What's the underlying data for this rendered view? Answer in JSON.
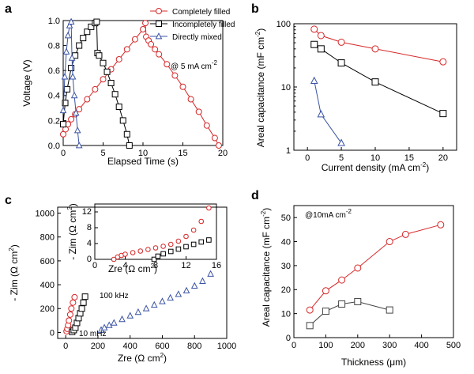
{
  "chart_data": [
    {
      "panel": "a",
      "type": "line",
      "xlabel": "Elapsed Time (s)",
      "ylabel": "Voltage (V)",
      "xlim": [
        0,
        20
      ],
      "ylim": [
        0,
        1.0
      ],
      "xticks": [
        0,
        5,
        10,
        15,
        20
      ],
      "yticks": [
        0.0,
        0.2,
        0.4,
        0.6,
        0.8,
        1.0
      ],
      "xtick_labels": [
        "0",
        "5",
        "10",
        "15",
        "20"
      ],
      "ytick_labels": [
        "0.0",
        "0.2",
        "0.4",
        "0.6",
        "0.8",
        "1.0"
      ],
      "annotation": "@ 5 mA cm",
      "annotation_sup": "-2",
      "legend_position": "top-right",
      "series": [
        {
          "name": "Completely filled",
          "color": "#d62728",
          "marker": "circle",
          "x": [
            0.0,
            0.3,
            0.6,
            1.0,
            1.5,
            2.0,
            3.0,
            4.0,
            5.0,
            6.0,
            7.0,
            8.0,
            9.0,
            10.0,
            10.3,
            10.4,
            10.7,
            11.0,
            11.5,
            12.0,
            13.0,
            14.0,
            15.0,
            16.0,
            17.0,
            18.0,
            19.0,
            19.5
          ],
          "y": [
            0.09,
            0.13,
            0.17,
            0.21,
            0.25,
            0.29,
            0.37,
            0.45,
            0.53,
            0.61,
            0.69,
            0.77,
            0.85,
            0.93,
            0.98,
            0.87,
            0.84,
            0.81,
            0.77,
            0.73,
            0.65,
            0.56,
            0.47,
            0.37,
            0.27,
            0.16,
            0.06,
            0.0
          ]
        },
        {
          "name": "Incompletely filled",
          "color": "#000000",
          "marker": "square",
          "x": [
            0.0,
            0.25,
            0.5,
            1.0,
            1.5,
            2.0,
            2.5,
            3.0,
            3.5,
            4.0,
            4.2,
            4.3,
            4.5,
            5.0,
            5.5,
            6.0,
            6.5,
            7.0,
            7.5,
            8.0,
            8.3
          ],
          "y": [
            0.17,
            0.34,
            0.45,
            0.62,
            0.72,
            0.8,
            0.86,
            0.91,
            0.95,
            0.98,
            0.99,
            0.74,
            0.72,
            0.66,
            0.59,
            0.5,
            0.41,
            0.31,
            0.2,
            0.09,
            0.0
          ]
        },
        {
          "name": "Directly mixed",
          "color": "#3a53a4",
          "marker": "triangle",
          "x": [
            0.0,
            0.2,
            0.4,
            0.6,
            0.8,
            1.0,
            1.1,
            1.2,
            1.4,
            1.6,
            1.8,
            2.0
          ],
          "y": [
            0.28,
            0.55,
            0.75,
            0.88,
            0.96,
            0.99,
            0.7,
            0.55,
            0.4,
            0.26,
            0.12,
            0.0
          ]
        }
      ]
    },
    {
      "panel": "b",
      "type": "line",
      "xlabel": "Current density (mA cm",
      "xlabel_sup": "-2",
      "xlabel_end": ")",
      "ylabel": "Areal capacitance (mF cm",
      "ylabel_sup": "-2",
      "ylabel_end": ")",
      "yscale": "log",
      "xlim": [
        -2,
        22
      ],
      "ylim": [
        1,
        100
      ],
      "xticks": [
        0,
        5,
        10,
        15,
        20
      ],
      "xtick_labels": [
        "0",
        "5",
        "10",
        "15",
        "20"
      ],
      "yticks": [
        1,
        10,
        100
      ],
      "ytick_labels": [
        "1",
        "10",
        "100"
      ],
      "series": [
        {
          "name": "Completely filled",
          "color": "#d62728",
          "marker": "circle",
          "x": [
            1,
            2,
            5,
            10,
            20
          ],
          "y": [
            82,
            65,
            51,
            40,
            25
          ]
        },
        {
          "name": "Incompletely filled",
          "color": "#000000",
          "marker": "square",
          "x": [
            1,
            2,
            5,
            10,
            20
          ],
          "y": [
            47,
            40,
            24,
            12,
            3.8
          ]
        },
        {
          "name": "Directly mixed",
          "color": "#3a53a4",
          "marker": "triangle",
          "x": [
            1,
            2,
            5
          ],
          "y": [
            12.5,
            3.7,
            1.3
          ]
        }
      ]
    },
    {
      "panel": "c",
      "type": "scatter",
      "xlabel": "Zre (Ω cm",
      "xlabel_sup": "2",
      "xlabel_end": ")",
      "ylabel": "- Zim (Ω cm",
      "ylabel_sup": "2",
      "ylabel_end": ")",
      "xlim": [
        -50,
        1000
      ],
      "ylim": [
        -50,
        1050
      ],
      "xticks": [
        0,
        200,
        400,
        600,
        800,
        1000
      ],
      "xtick_labels": [
        "0",
        "200",
        "400",
        "600",
        "800",
        "1000"
      ],
      "yticks": [
        0,
        200,
        400,
        600,
        800,
        1000
      ],
      "ytick_labels": [
        "0",
        "200",
        "400",
        "600",
        "800",
        "1000"
      ],
      "annotations": [
        "100 kHz",
        "10 mHz"
      ],
      "series": [
        {
          "name": "Completely filled",
          "color": "#d62728",
          "marker": "circle",
          "x": [
            5,
            10,
            15,
            20,
            28,
            35,
            45,
            55
          ],
          "y": [
            10,
            30,
            60,
            100,
            150,
            200,
            250,
            295
          ]
        },
        {
          "name": "Incompletely filled",
          "color": "#000000",
          "marker": "square",
          "x": [
            40,
            50,
            60,
            70,
            80,
            90,
            100,
            110,
            120
          ],
          "y": [
            5,
            20,
            40,
            80,
            120,
            160,
            200,
            250,
            300
          ]
        },
        {
          "name": "Directly mixed",
          "color": "#3a53a4",
          "marker": "triangle",
          "x": [
            220,
            240,
            270,
            300,
            350,
            400,
            450,
            500,
            550,
            600,
            650,
            700,
            750,
            800,
            850,
            900
          ],
          "y": [
            20,
            40,
            60,
            80,
            110,
            140,
            170,
            200,
            230,
            260,
            290,
            320,
            350,
            390,
            430,
            490
          ]
        }
      ],
      "inset": {
        "xlabel": "Zre (Ω cm",
        "xlabel_sup": "2",
        "xlabel_end": ")",
        "ylabel": "- Zim (Ω cm",
        "ylabel_sup": "2",
        "ylabel_end": ")",
        "xlim": [
          0,
          16
        ],
        "ylim": [
          0,
          14
        ],
        "xticks": [
          0,
          4,
          8,
          12,
          16
        ],
        "xtick_labels": [
          "0",
          "4",
          "8",
          "12",
          "16"
        ],
        "yticks": [
          0,
          4,
          8,
          12
        ],
        "ytick_labels": [
          "0",
          "4",
          "8",
          "12"
        ],
        "series": [
          {
            "name": "Completely filled",
            "color": "#d62728",
            "marker": "circle",
            "x": [
              2.5,
              3.0,
              3.5,
              4.0,
              5.0,
              6.0,
              7.0,
              8.0,
              9.0,
              10.0,
              11.0,
              12.0,
              13.0,
              14.0,
              15.0
            ],
            "y": [
              0.0,
              0.6,
              1.0,
              1.3,
              1.7,
              2.1,
              2.5,
              2.9,
              3.3,
              3.8,
              4.6,
              5.8,
              7.4,
              9.6,
              13.0
            ]
          },
          {
            "name": "Incompletely filled",
            "color": "#000000",
            "marker": "square",
            "x": [
              7.8,
              8.3,
              9.0,
              10.0,
              11.0,
              12.0,
              13.0,
              14.0,
              15.0
            ],
            "y": [
              0.0,
              0.8,
              1.4,
              2.0,
              2.6,
              3.2,
              3.8,
              4.4,
              4.9
            ]
          }
        ]
      }
    },
    {
      "panel": "d",
      "type": "line",
      "xlabel": "Thickness (μm)",
      "ylabel": "Areal capacitance (mF cm",
      "ylabel_sup": "-2",
      "ylabel_end": ")",
      "xlim": [
        0,
        500
      ],
      "ylim": [
        0,
        55
      ],
      "xticks": [
        0,
        100,
        200,
        300,
        400,
        500
      ],
      "xtick_labels": [
        "0",
        "100",
        "200",
        "300",
        "400",
        "500"
      ],
      "yticks": [
        0,
        10,
        20,
        30,
        40,
        50
      ],
      "ytick_labels": [
        "0",
        "10",
        "20",
        "30",
        "40",
        "50"
      ],
      "annotation": "@10mA cm",
      "annotation_sup": "-2",
      "series": [
        {
          "name": "Completely filled",
          "color": "#d62728",
          "marker": "circle",
          "x": [
            50,
            100,
            150,
            200,
            300,
            350,
            460
          ],
          "y": [
            11.5,
            19.5,
            24,
            29,
            40,
            43,
            47
          ]
        },
        {
          "name": "Incompletely filled",
          "color": "#444444",
          "marker": "square",
          "x": [
            50,
            100,
            150,
            200,
            300
          ],
          "y": [
            5,
            11,
            14,
            15,
            11.5
          ]
        }
      ]
    }
  ]
}
